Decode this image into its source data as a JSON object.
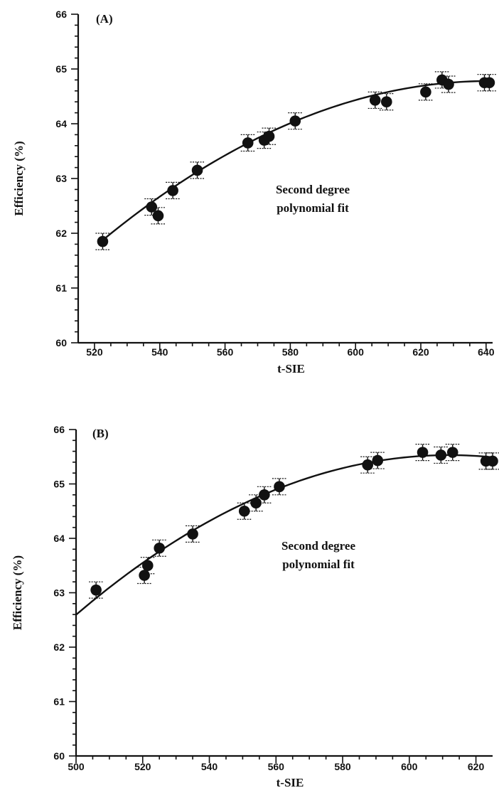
{
  "chart_data": [
    {
      "type": "scatter",
      "panel_label": "(A)",
      "xlabel": "t-SIE",
      "ylabel": "Efficiency (%)",
      "xlim": [
        515,
        642
      ],
      "ylim": [
        60,
        66
      ],
      "x_ticks": [
        520,
        540,
        560,
        580,
        600,
        620,
        640
      ],
      "y_ticks": [
        60,
        61,
        62,
        63,
        64,
        65,
        66
      ],
      "annotation": [
        "Second degree",
        "polynomial fit"
      ],
      "grid": false,
      "series": [
        {
          "points": [
            {
              "x": 522.5,
              "y": 61.85,
              "err": 0.15
            },
            {
              "x": 537.5,
              "y": 62.48,
              "err": 0.15
            },
            {
              "x": 539.5,
              "y": 62.32,
              "err": 0.15
            },
            {
              "x": 544.0,
              "y": 62.78,
              "err": 0.15
            },
            {
              "x": 551.5,
              "y": 63.15,
              "err": 0.15
            },
            {
              "x": 567.0,
              "y": 63.65,
              "err": 0.15
            },
            {
              "x": 572.0,
              "y": 63.7,
              "err": 0.15
            },
            {
              "x": 573.5,
              "y": 63.77,
              "err": 0.15
            },
            {
              "x": 581.5,
              "y": 64.05,
              "err": 0.15
            },
            {
              "x": 606.0,
              "y": 64.43,
              "err": 0.15
            },
            {
              "x": 609.5,
              "y": 64.4,
              "err": 0.15
            },
            {
              "x": 621.5,
              "y": 64.58,
              "err": 0.15
            },
            {
              "x": 626.5,
              "y": 64.8,
              "err": 0.15
            },
            {
              "x": 628.5,
              "y": 64.72,
              "err": 0.15
            },
            {
              "x": 639.5,
              "y": 64.75,
              "err": 0.15
            },
            {
              "x": 641.0,
              "y": 64.75,
              "err": 0.15
            }
          ],
          "fit": {
            "vertex_x": 641,
            "vertex_y": 64.78,
            "curvature": -0.000207,
            "x_range": [
              522.5,
              641
            ]
          }
        }
      ]
    },
    {
      "type": "scatter",
      "panel_label": "(B)",
      "xlabel": "t-SIE",
      "ylabel": "Efficiency (%)",
      "xlim": [
        500,
        625
      ],
      "ylim": [
        60,
        66
      ],
      "x_ticks": [
        500,
        520,
        540,
        560,
        580,
        600,
        620
      ],
      "y_ticks": [
        60,
        61,
        62,
        63,
        64,
        65,
        66
      ],
      "annotation": [
        "Second degree",
        "polynomial fit"
      ],
      "grid": false,
      "series": [
        {
          "points": [
            {
              "x": 506.0,
              "y": 63.05,
              "err": 0.15
            },
            {
              "x": 520.5,
              "y": 63.32,
              "err": 0.15
            },
            {
              "x": 521.5,
              "y": 63.5,
              "err": 0.15
            },
            {
              "x": 525.0,
              "y": 63.82,
              "err": 0.15
            },
            {
              "x": 535.0,
              "y": 64.08,
              "err": 0.15
            },
            {
              "x": 550.5,
              "y": 64.5,
              "err": 0.15
            },
            {
              "x": 554.0,
              "y": 64.65,
              "err": 0.15
            },
            {
              "x": 556.5,
              "y": 64.8,
              "err": 0.15
            },
            {
              "x": 561.0,
              "y": 64.95,
              "err": 0.15
            },
            {
              "x": 587.5,
              "y": 65.35,
              "err": 0.15
            },
            {
              "x": 590.5,
              "y": 65.43,
              "err": 0.15
            },
            {
              "x": 604.0,
              "y": 65.58,
              "err": 0.15
            },
            {
              "x": 609.5,
              "y": 65.53,
              "err": 0.15
            },
            {
              "x": 613.0,
              "y": 65.58,
              "err": 0.15
            },
            {
              "x": 623.0,
              "y": 65.42,
              "err": 0.15
            },
            {
              "x": 625.0,
              "y": 65.42,
              "err": 0.15
            }
          ],
          "fit": {
            "vertex_x": 612,
            "vertex_y": 65.53,
            "curvature": -0.000234,
            "x_range": [
              500,
              625
            ]
          }
        }
      ]
    }
  ]
}
